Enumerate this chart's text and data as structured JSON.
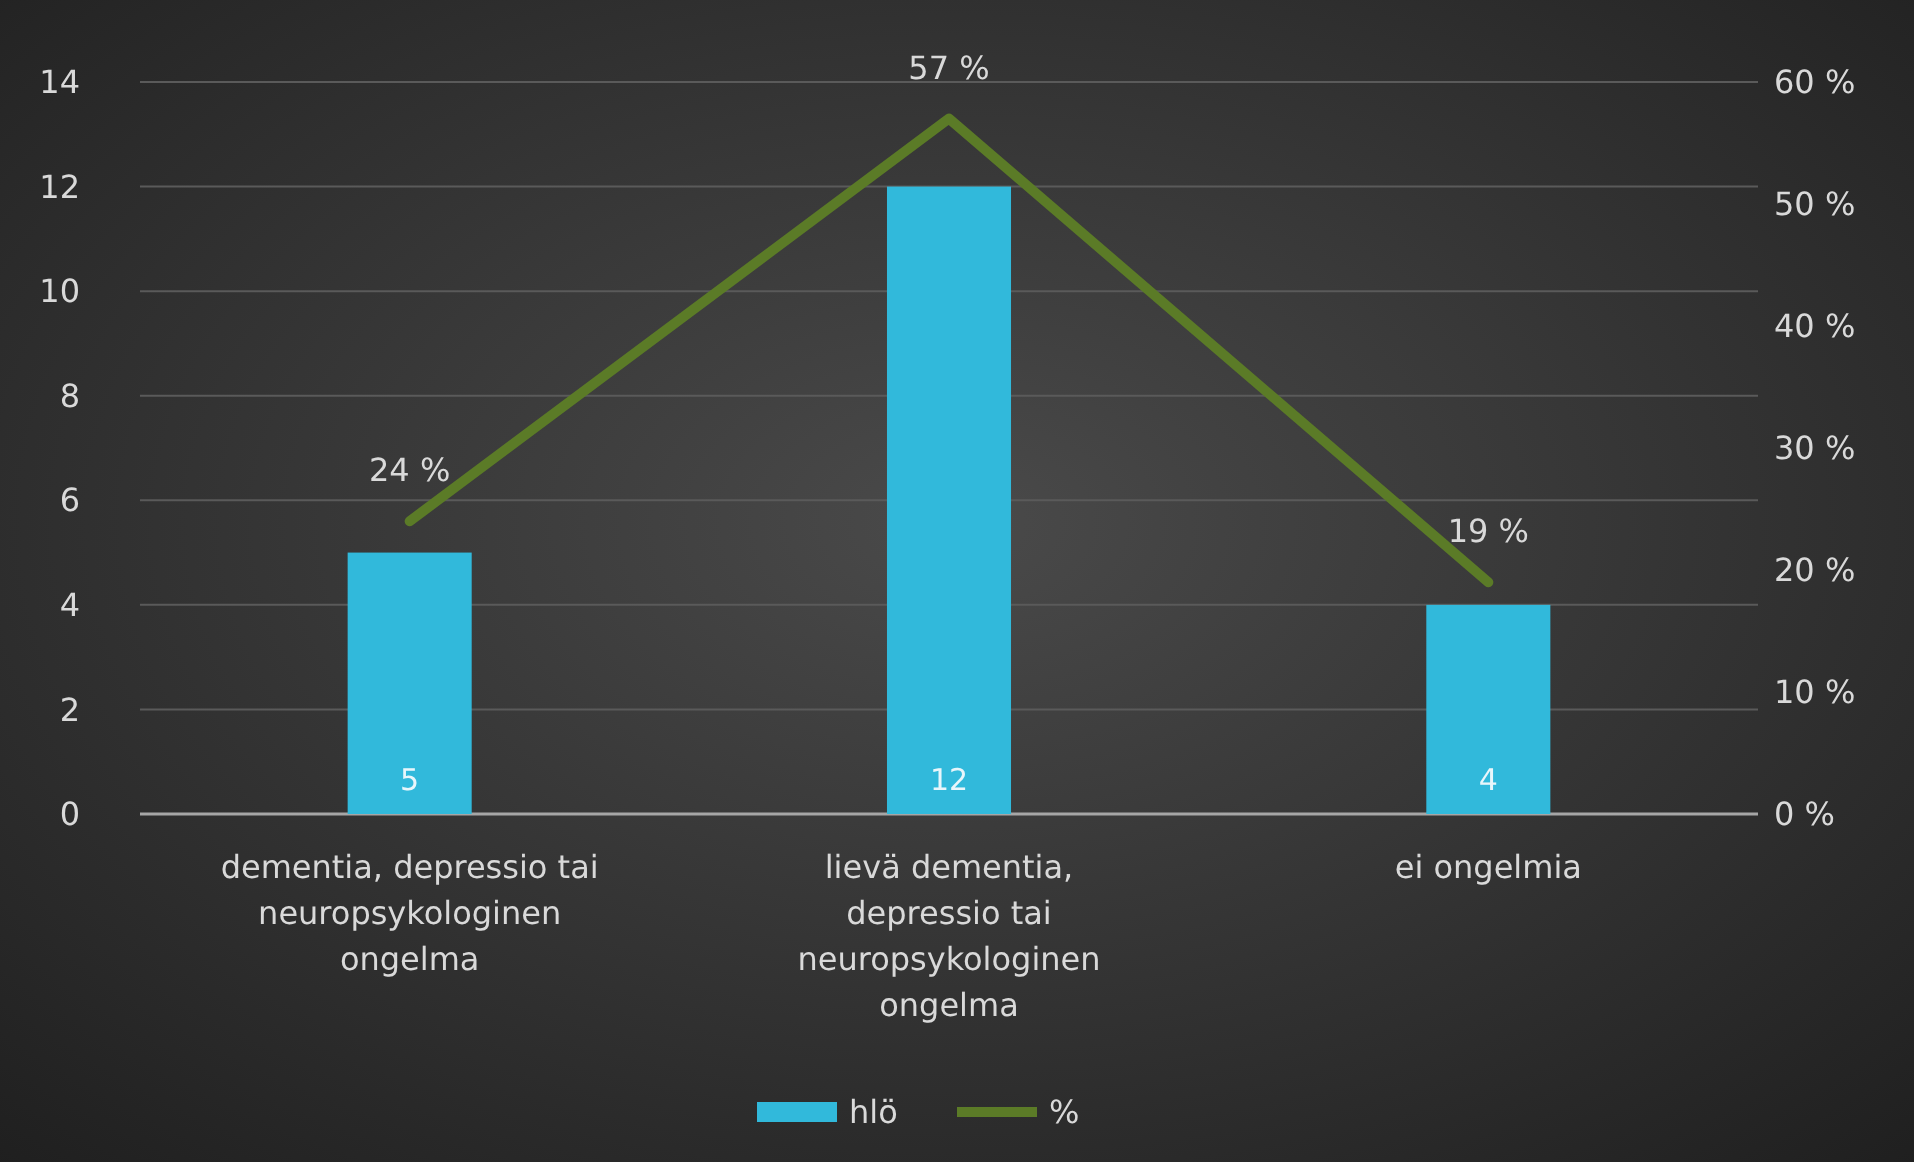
{
  "chart_data": {
    "type": "bar",
    "categories": [
      "dementia, depressio tai neuropsykologinen ongelma",
      "lievä dementia, depressio tai neuropsykologinen ongelma",
      "ei ongelmia"
    ],
    "series": [
      {
        "name": "hlö",
        "color": "#31b9db",
        "values": [
          5,
          12,
          4
        ],
        "value_labels": [
          "5",
          "12",
          "4"
        ]
      },
      {
        "name": "%",
        "type": "line",
        "axis": "y2",
        "color": "#5b7b27",
        "values": [
          24,
          57,
          19
        ],
        "value_labels": [
          "24 %",
          "57 %",
          "19 %"
        ]
      }
    ],
    "ylim": [
      0,
      14
    ],
    "yticks": [
      0,
      2,
      4,
      6,
      8,
      10,
      12,
      14
    ],
    "y2lim": [
      0,
      60
    ],
    "y2ticks": [
      {
        "value": 0,
        "label": "0 %"
      },
      {
        "value": 10,
        "label": "10 %"
      },
      {
        "value": 20,
        "label": "20 %"
      },
      {
        "value": 30,
        "label": "30 %"
      },
      {
        "value": 40,
        "label": "40 %"
      },
      {
        "value": 50,
        "label": "50 %"
      },
      {
        "value": 60,
        "label": "60 %"
      }
    ],
    "grid": "y",
    "legend": "bottom",
    "marker": "none",
    "line_style": "solid"
  }
}
